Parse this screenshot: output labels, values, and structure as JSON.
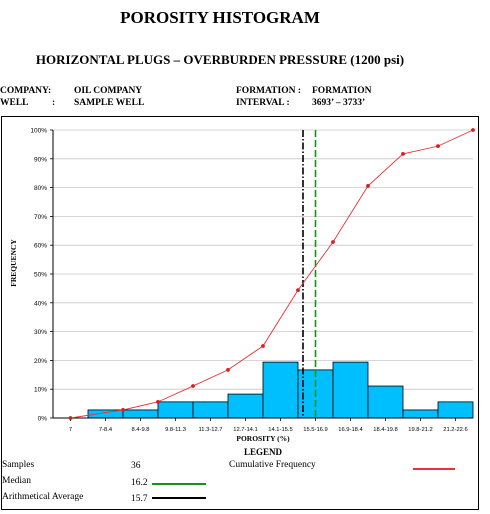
{
  "header": {
    "title": "POROSITY HISTOGRAM",
    "subtitle": "HORIZONTAL PLUGS – OVERBURDEN PRESSURE (1200 psi)"
  },
  "info": {
    "company_label": "COMPANY:",
    "company_value": "OIL COMPANY",
    "well_label": "WELL",
    "well_sep": ":",
    "well_value": "SAMPLE WELL",
    "formation_label": "FORMATION :",
    "formation_value": "FORMATION",
    "interval_label": "INTERVAL :",
    "interval_value": "3693’ – 3733’"
  },
  "chart_data": {
    "type": "bar",
    "title": "",
    "xlabel": "POROSITY (%)",
    "ylabel": "FREQUENCY",
    "categories": [
      "7",
      "7-8.4",
      "8.4-9.8",
      "9.8-11.3",
      "11.3-12.7",
      "12.7-14.1",
      "14.1-15.5",
      "15.5-16.9",
      "16.9-18.4",
      "18.4-19.8",
      "19.8-21.2",
      "21.2-22.6"
    ],
    "series": [
      {
        "name": "",
        "type": "bar",
        "color": "#00bfff",
        "values": [
          0,
          2.8,
          2.8,
          5.6,
          5.6,
          8.3,
          19.4,
          16.7,
          19.4,
          11.1,
          2.8,
          5.6
        ]
      },
      {
        "name": "Cumulative Frequency",
        "type": "line",
        "color": "#e8313a",
        "values": [
          0,
          2.8,
          5.6,
          11.1,
          16.7,
          25.0,
          44.4,
          61.1,
          80.6,
          91.7,
          94.4,
          100
        ]
      }
    ],
    "y_ticks": [
      "0%",
      "10%",
      "20%",
      "30%",
      "40%",
      "50%",
      "60%",
      "70%",
      "80%",
      "90%",
      "100%"
    ],
    "ylim": [
      0,
      100
    ],
    "median": 16.2,
    "arithmetical_average": 15.7,
    "median_color": "#1a8f1a",
    "average_color": "#000000",
    "legend_placement": "bottom"
  },
  "legend": {
    "title": "LEGEND",
    "samples_label": "Samples",
    "samples_value": "36",
    "median_label": "Median",
    "median_value": "16.2",
    "average_label": "Arithmetical Average",
    "average_value": "15.7",
    "cumulative_label": "Cumulative Frequency"
  }
}
